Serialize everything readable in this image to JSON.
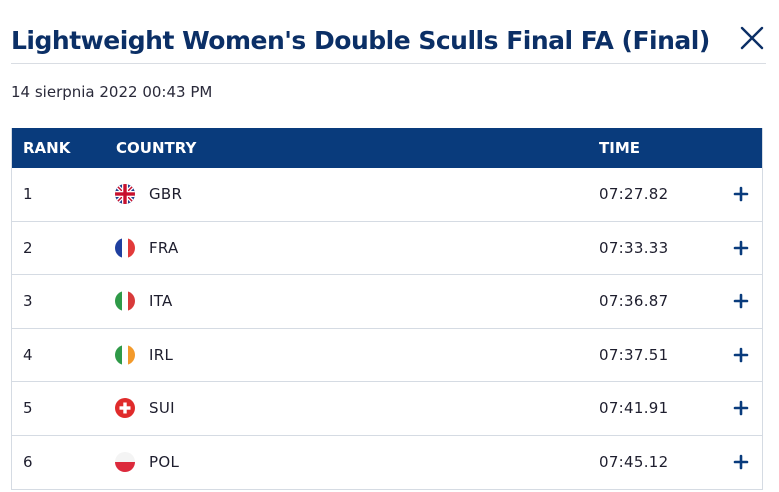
{
  "header": {
    "title": "Lightweight Women's Double Sculls Final FA (Final)",
    "close_icon": "close-icon"
  },
  "date": "14 sierpnia 2022 00:43 PM",
  "table": {
    "columns": {
      "rank": "RANK",
      "country": "COUNTRY",
      "time": "TIME"
    },
    "rows": [
      {
        "rank": "1",
        "country": "GBR",
        "flag": "gbr-flag-icon",
        "time": "07:27.82"
      },
      {
        "rank": "2",
        "country": "FRA",
        "flag": "fra-flag-icon",
        "time": "07:33.33"
      },
      {
        "rank": "3",
        "country": "ITA",
        "flag": "ita-flag-icon",
        "time": "07:36.87"
      },
      {
        "rank": "4",
        "country": "IRL",
        "flag": "irl-flag-icon",
        "time": "07:37.51"
      },
      {
        "rank": "5",
        "country": "SUI",
        "flag": "sui-flag-icon",
        "time": "07:41.91"
      },
      {
        "rank": "6",
        "country": "POL",
        "flag": "pol-flag-icon",
        "time": "07:45.12"
      }
    ],
    "expand_icon": "plus-icon"
  },
  "colors": {
    "title": "#0b2f66",
    "header_bg": "#093b7c",
    "accent": "#093b7c",
    "row_border": "#d5dbe3"
  }
}
